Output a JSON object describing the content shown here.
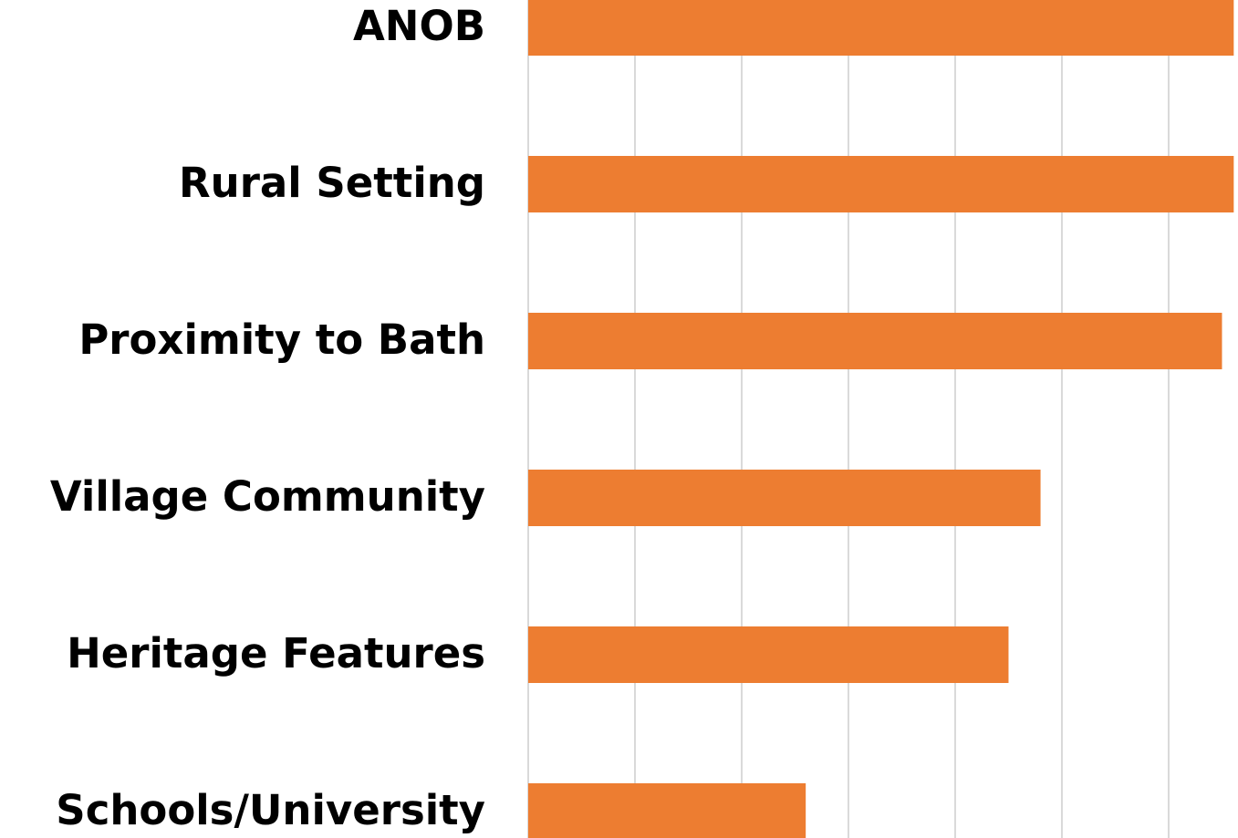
{
  "chart_data": {
    "type": "hbar",
    "categories": [
      "ANOB",
      "Rural Setting",
      "Proximity to Bath",
      "Village Community",
      "Heritage Features",
      "Schools/University"
    ],
    "values": [
      66.1,
      66.1,
      65.0,
      48.0,
      45.0,
      26.0
    ],
    "color": "#ed7d31",
    "xlim": [
      0,
      66.5
    ],
    "xticks": [
      0,
      10,
      20,
      30,
      40,
      50,
      60
    ],
    "grid": true
  }
}
